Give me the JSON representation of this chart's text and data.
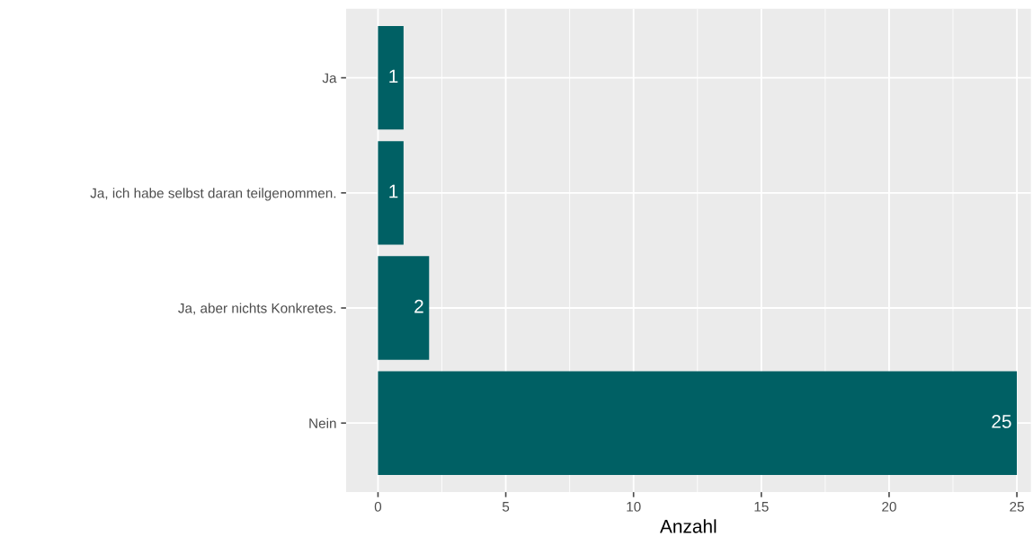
{
  "chart_data": {
    "type": "bar",
    "orientation": "horizontal",
    "xlabel": "Anzahl",
    "categories": [
      "Ja",
      "Ja, ich habe selbst daran teilgenommen.",
      "Ja, aber nichts Konkretes.",
      "Nein"
    ],
    "values": [
      1,
      1,
      2,
      25
    ],
    "color": "#006064",
    "xlim": [
      -1.25,
      25.55
    ],
    "xticks": [
      0,
      5,
      10,
      15,
      20,
      25
    ],
    "grid": true,
    "data_labels": true
  }
}
